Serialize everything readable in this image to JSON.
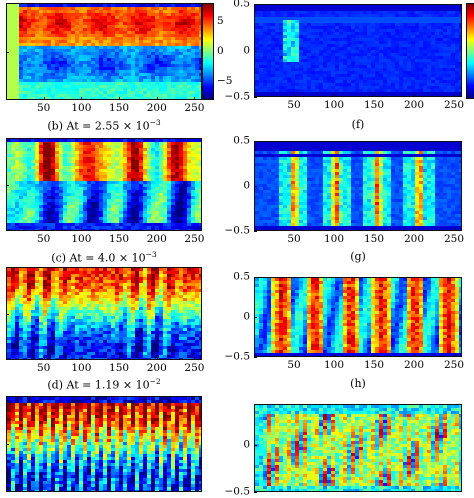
{
  "chart_data": [
    {
      "panel": "b",
      "type": "heatmap",
      "column": "left",
      "caption_prefix": "(b) At = 2.55 × 10",
      "caption_exp": "−3",
      "x_ticks": [
        "50",
        "100",
        "150",
        "200",
        "250"
      ],
      "xlim": [
        0,
        260
      ],
      "colorbar": {
        "ticks": [
          "5",
          "0",
          "−5"
        ],
        "range": [
          -8,
          8
        ]
      }
    },
    {
      "panel": "c",
      "type": "heatmap",
      "column": "left",
      "caption_prefix": "(c) At = 4.0 × 10",
      "caption_exp": "−3",
      "x_ticks": [
        "50",
        "100",
        "150",
        "200",
        "250"
      ],
      "xlim": [
        0,
        260
      ]
    },
    {
      "panel": "d",
      "type": "heatmap",
      "column": "left",
      "caption_prefix": "(d) At = 1.19 × 10",
      "caption_exp": "−2",
      "x_ticks": [
        "50",
        "100",
        "150",
        "200",
        "250"
      ],
      "xlim": [
        0,
        260
      ]
    },
    {
      "panel": "e",
      "type": "heatmap",
      "column": "left",
      "xlim": [
        0,
        260
      ]
    },
    {
      "panel": "f",
      "type": "heatmap",
      "column": "right",
      "caption_prefix": "(f)",
      "x_ticks": [
        "50",
        "100",
        "150",
        "200",
        "250"
      ],
      "xlim": [
        0,
        260
      ],
      "y_ticks": [
        "0.5",
        "0",
        "−0.5"
      ],
      "ylim": [
        -0.5,
        0.5
      ]
    },
    {
      "panel": "g",
      "type": "heatmap",
      "column": "right",
      "caption_prefix": "(g)",
      "x_ticks": [
        "50",
        "100",
        "150",
        "200",
        "250"
      ],
      "xlim": [
        0,
        260
      ],
      "y_ticks": [
        "0.5",
        "0",
        "−0.5"
      ],
      "ylim": [
        -0.5,
        0.5
      ]
    },
    {
      "panel": "h",
      "type": "heatmap",
      "column": "right",
      "caption_prefix": "(h)",
      "x_ticks": [
        "50",
        "100",
        "150",
        "200",
        "250"
      ],
      "xlim": [
        0,
        260
      ],
      "y_ticks": [
        "0.5",
        "0",
        "−0.5"
      ],
      "ylim": [
        -0.5,
        0.5
      ]
    },
    {
      "panel": "i",
      "type": "heatmap",
      "column": "right",
      "xlim": [
        0,
        260
      ],
      "y_ticks": [
        "0",
        "−0.5"
      ],
      "ylim": [
        -0.5,
        0.5
      ]
    }
  ]
}
